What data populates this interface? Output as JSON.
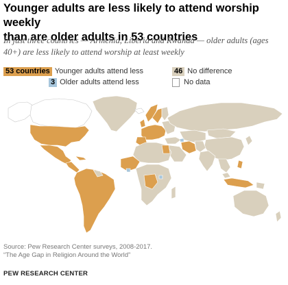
{
  "header": {
    "title_line1": "Younger adults are less likely to attend worship weekly",
    "title_line2": "than are older adults in 53 countries",
    "subtitle_line1": "In just three countries — Armenia, Liberia and Rwanda — older adults (ages",
    "subtitle_line2": "40+) are less likely to attend worship at least weekly"
  },
  "legend": {
    "younger_less": {
      "badge": "53 countries",
      "label": "Younger adults attend less",
      "color": "#dc9f4e"
    },
    "older_less": {
      "badge": "3",
      "label": "Older adults attend less",
      "color": "#a7c6dc"
    },
    "no_difference": {
      "badge": "46",
      "label": "No difference",
      "color": "#d9d0bd"
    },
    "no_data": {
      "label": "No data",
      "color": "#ffffff"
    }
  },
  "map": {
    "land_color": "#d9d0bd",
    "younger_less_color": "#dc9f4e",
    "older_less_color": "#a7c6dc",
    "border_color": "#ffffff",
    "older_less_countries": [
      "Armenia",
      "Liberia",
      "Rwanda"
    ]
  },
  "footer": {
    "source": "Source: Pew Research Center surveys, 2008-2017.",
    "report": "“The Age Gap in Religion Around the World”",
    "org": "PEW RESEARCH CENTER"
  }
}
